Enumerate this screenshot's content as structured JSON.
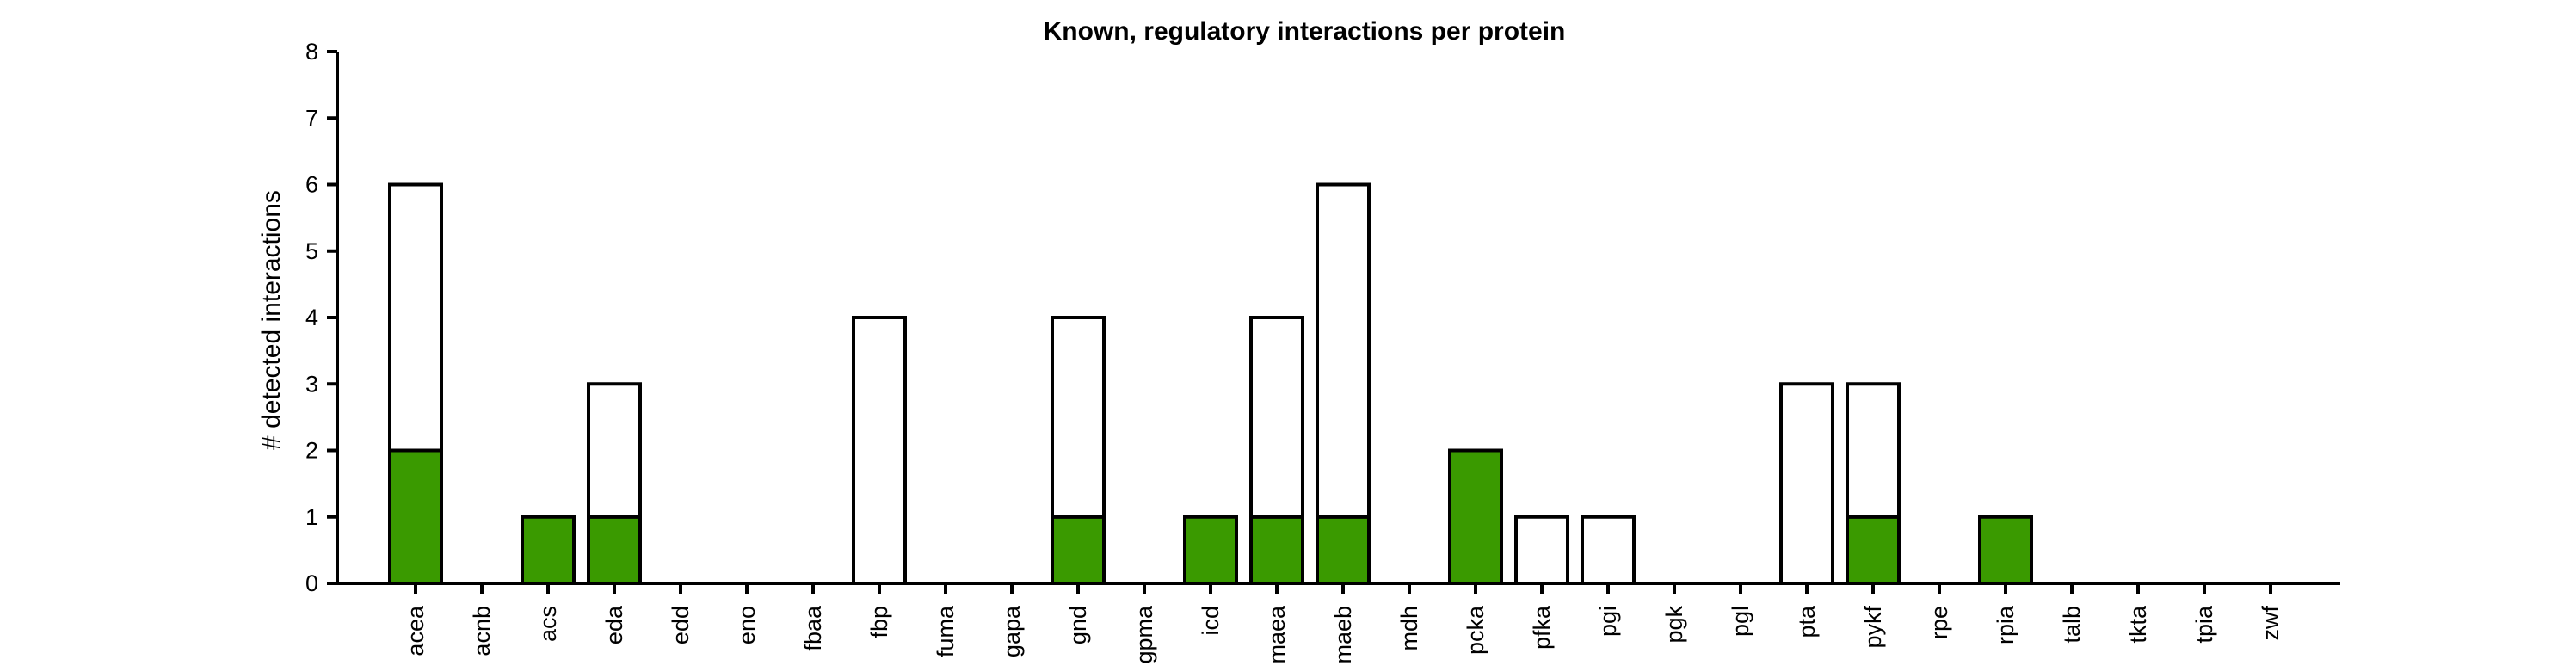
{
  "chart_data": {
    "type": "bar",
    "stacked": true,
    "title": "Known, regulatory interactions per protein",
    "xlabel": "",
    "ylabel": "# detected interactions",
    "ylim": [
      0,
      8
    ],
    "yticks": [
      0,
      1,
      2,
      3,
      4,
      5,
      6,
      7,
      8
    ],
    "grid": false,
    "categories": [
      "acea",
      "acnb",
      "acs",
      "eda",
      "edd",
      "eno",
      "fbaa",
      "fbp",
      "fuma",
      "gapa",
      "gnd",
      "gpma",
      "icd",
      "maea",
      "maeb",
      "mdh",
      "pcka",
      "pfka",
      "pgi",
      "pgk",
      "pgl",
      "pta",
      "pykf",
      "rpe",
      "rpia",
      "talb",
      "tkta",
      "tpia",
      "zwf"
    ],
    "series": [
      {
        "color": "#3a9a00",
        "values": [
          2,
          0,
          1,
          1,
          0,
          0,
          0,
          0,
          0,
          0,
          1,
          0,
          1,
          1,
          1,
          0,
          2,
          0,
          0,
          0,
          0,
          0,
          1,
          0,
          1,
          0,
          0,
          0,
          0
        ]
      },
      {
        "color": "#ffffff",
        "values": [
          4,
          0,
          0,
          2,
          0,
          0,
          0,
          4,
          0,
          0,
          3,
          0,
          0,
          3,
          5,
          0,
          0,
          1,
          1,
          0,
          0,
          3,
          2,
          0,
          0,
          0,
          0,
          0,
          0
        ]
      }
    ]
  }
}
